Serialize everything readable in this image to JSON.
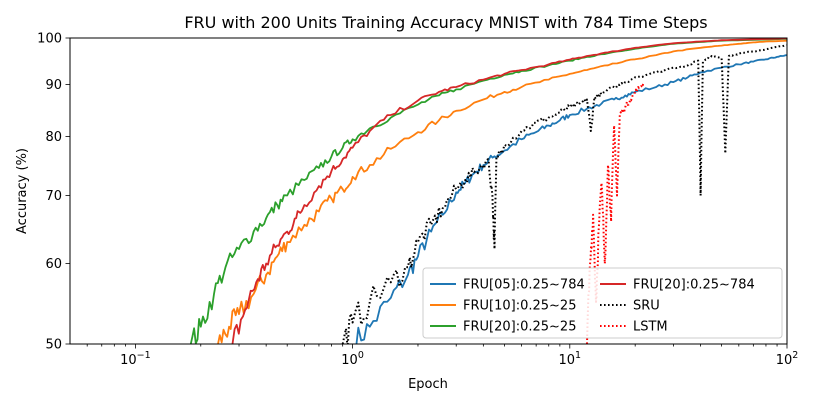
{
  "chart_data": {
    "type": "line",
    "title": "FRU with 200 Units Training Accuracy MNIST with 784 Time Steps",
    "xlabel": "Epoch",
    "ylabel": "Accuracy (%)",
    "xscale": "log",
    "xlim": [
      0.05,
      100
    ],
    "ylim": [
      50,
      100
    ],
    "x_ticks": [
      {
        "value": 0.1,
        "base": "10",
        "exp": "−1"
      },
      {
        "value": 1,
        "base": "10",
        "exp": "0"
      },
      {
        "value": 10,
        "base": "10",
        "exp": "1"
      },
      {
        "value": 100,
        "base": "10",
        "exp": "2"
      }
    ],
    "y_ticks": [
      50,
      60,
      70,
      80,
      90,
      100
    ],
    "legend_location": "lower-right",
    "series": [
      {
        "name": "FRU[05]:0.25~784",
        "color": "#1f77b4",
        "style": "solid",
        "x": [
          1.0,
          1.2,
          1.5,
          1.8,
          2.0,
          2.3,
          2.6,
          3.0,
          3.3,
          3.6,
          4.0,
          4.5,
          5,
          6,
          7,
          8,
          9,
          10,
          12,
          14,
          16,
          18,
          20,
          25,
          30,
          35,
          40,
          50,
          60,
          70,
          80,
          90,
          100
        ],
        "y": [
          50,
          52,
          55.5,
          58.5,
          61,
          64.5,
          67,
          70.5,
          72,
          73.5,
          75,
          76.5,
          77.5,
          79.5,
          80.8,
          82,
          83,
          84,
          85.2,
          86.2,
          87,
          87.8,
          88.5,
          89.5,
          90.5,
          91.5,
          92.5,
          93.5,
          94.2,
          94.8,
          95.3,
          95.8,
          96.2
        ]
      },
      {
        "name": "FRU[10]:0.25~25",
        "color": "#ff7f0e",
        "style": "solid",
        "x": [
          0.24,
          0.27,
          0.3,
          0.35,
          0.4,
          0.45,
          0.5,
          0.6,
          0.7,
          0.8,
          0.9,
          1.0,
          1.2,
          1.5,
          2,
          2.5,
          3,
          4,
          5,
          6,
          8,
          10,
          12,
          15,
          20,
          25,
          30,
          40,
          50,
          60,
          70,
          80,
          100
        ],
        "y": [
          50,
          52,
          53.5,
          56,
          58.5,
          61,
          63,
          65.5,
          67.5,
          69.5,
          71,
          73,
          75,
          77.8,
          80.8,
          83,
          84.8,
          87,
          88.5,
          89.5,
          91,
          92.2,
          93,
          94,
          95.3,
          96.2,
          97,
          97.8,
          98.3,
          98.7,
          99,
          99.2,
          99.4
        ]
      },
      {
        "name": "FRU[20]:0.25~25",
        "color": "#2ca02c",
        "style": "solid",
        "x": [
          0.18,
          0.2,
          0.23,
          0.26,
          0.3,
          0.35,
          0.4,
          0.45,
          0.5,
          0.6,
          0.7,
          0.8,
          0.9,
          1.0,
          1.2,
          1.5,
          2,
          2.5,
          3,
          4,
          5,
          6,
          8,
          10,
          12,
          15,
          20,
          25,
          30,
          40,
          50,
          70,
          100
        ],
        "y": [
          50,
          52,
          56,
          59.5,
          62,
          64.5,
          66.5,
          68.5,
          70,
          72.5,
          74.5,
          76.5,
          78,
          79.5,
          81.5,
          83.5,
          86,
          87.8,
          89,
          90.8,
          92,
          92.8,
          94,
          95,
          95.8,
          96.6,
          97.6,
          98.2,
          98.7,
          99.1,
          99.4,
          99.6,
          99.8
        ]
      },
      {
        "name": "FRU[20]:0.25~784",
        "color": "#d62728",
        "style": "solid",
        "x": [
          0.28,
          0.32,
          0.36,
          0.4,
          0.45,
          0.5,
          0.55,
          0.6,
          0.7,
          0.8,
          0.9,
          1.0,
          1.2,
          1.5,
          2,
          2.5,
          3,
          4,
          5,
          6,
          8,
          10,
          12,
          15,
          20,
          25,
          30,
          40,
          50,
          70,
          100
        ],
        "y": [
          50,
          54,
          57.5,
          60,
          62.5,
          64.5,
          66.5,
          68.5,
          71.5,
          74,
          76,
          78,
          81,
          84,
          86.8,
          88.5,
          89.5,
          91,
          92.2,
          93,
          94.2,
          95.2,
          96,
          96.8,
          97.8,
          98.4,
          98.8,
          99.2,
          99.5,
          99.7,
          99.9
        ]
      },
      {
        "name": "SRU",
        "color": "#000000",
        "style": "dotted",
        "x": [
          0.9,
          1.0,
          1.2,
          1.5,
          1.8,
          2.0,
          2.3,
          2.6,
          3.0,
          3.3,
          3.7,
          4.2,
          4.4,
          4.5,
          4.6,
          5,
          6,
          7,
          8,
          9,
          10,
          11,
          12,
          12.5,
          13,
          14,
          16,
          18,
          20,
          25,
          30,
          35,
          39,
          40,
          41,
          45,
          50,
          52,
          54,
          60,
          70,
          80,
          90,
          100
        ],
        "y": [
          50,
          52.5,
          55,
          57.5,
          59.5,
          63,
          65.5,
          68,
          71,
          72.5,
          74,
          76,
          70,
          62,
          76.5,
          78.5,
          81,
          82.5,
          83.5,
          84.5,
          85.5,
          86,
          87,
          81,
          87.5,
          88,
          89.5,
          90.5,
          91.5,
          92.5,
          93.5,
          94,
          95,
          70,
          94.8,
          96,
          95.5,
          77,
          96,
          96.5,
          97,
          97.5,
          98,
          98.4
        ]
      },
      {
        "name": "LSTM",
        "color": "#ff0000",
        "style": "dotted",
        "x": [
          12.0,
          12.4,
          12.8,
          13.2,
          13.6,
          14.0,
          14.5,
          15.0,
          15.5,
          16.0,
          16.5,
          17,
          18,
          19,
          20,
          21,
          22
        ],
        "y": [
          50,
          60,
          67,
          55,
          65,
          72,
          60,
          75,
          66,
          82,
          70,
          84,
          85.5,
          87,
          88.5,
          89.5,
          90.5
        ]
      }
    ]
  }
}
